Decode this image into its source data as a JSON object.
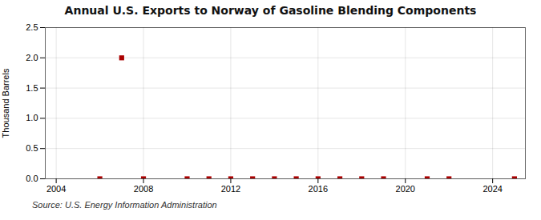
{
  "chart_data": {
    "type": "scatter",
    "title": "Annual U.S. Exports to Norway of Gasoline Blending Components",
    "ylabel": "Thousand Barrels",
    "source": "Source: U.S. Energy Information Administration",
    "x": [
      2006,
      2007,
      2008,
      2010,
      2011,
      2012,
      2013,
      2014,
      2015,
      2016,
      2017,
      2018,
      2019,
      2021,
      2022,
      2025
    ],
    "values": [
      0,
      2.0,
      0,
      0,
      0,
      0,
      0,
      0,
      0,
      0,
      0,
      0,
      0,
      0,
      0,
      0
    ],
    "color": "#aa0000",
    "marker": "square",
    "xlim": [
      2003.5,
      2025.5
    ],
    "xticks": [
      2004,
      2008,
      2012,
      2016,
      2020,
      2024
    ],
    "ylim": [
      0.0,
      2.5
    ],
    "yticks": [
      {
        "value": 0,
        "label": "0.0"
      },
      {
        "value": 0.5,
        "label": "0.5"
      },
      {
        "value": 1,
        "label": "1.0"
      },
      {
        "value": 1.5,
        "label": "1.5"
      },
      {
        "value": 2,
        "label": "2.0"
      },
      {
        "value": 2.5,
        "label": "2.5"
      }
    ],
    "grid": true
  }
}
